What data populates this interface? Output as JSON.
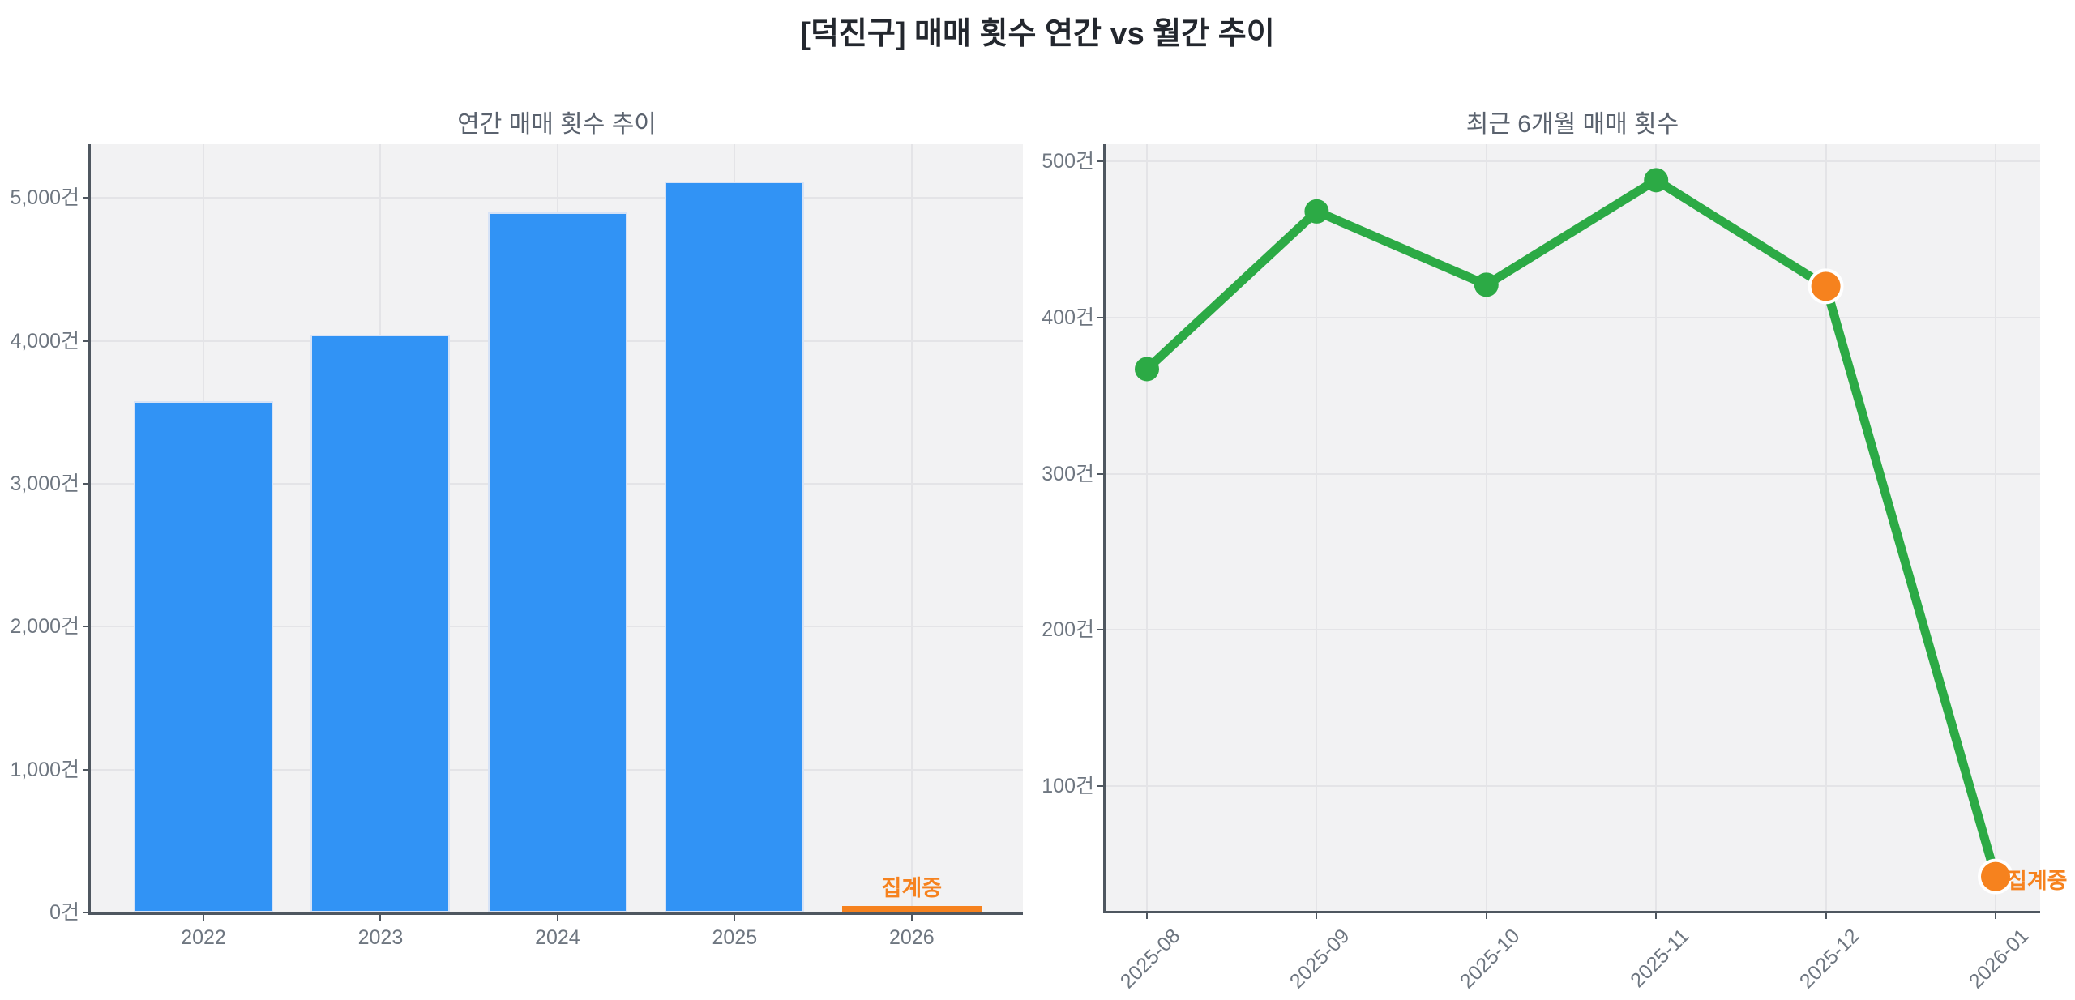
{
  "figure": {
    "title": "[덕진구] 매매 횟수 연간 vs 월간 추이"
  },
  "colors": {
    "bar_blue": "#3193f5",
    "bar_blue_edge": "#d7e3f6",
    "line_green": "#2caa45",
    "accent_orange": "#f6821e",
    "marker_edge_white": "#ffffff",
    "plot_background": "#f2f2f3",
    "gridline": "#e4e4e7",
    "axis_spine": "#4f5760",
    "tick_text": "#6e7680",
    "subtitle_text": "#5a626e",
    "title_text": "#23272e"
  },
  "chart_data": [
    {
      "id": "annual",
      "type": "bar",
      "title": "연간 매매 횟수 추이",
      "categories": [
        "2022",
        "2023",
        "2024",
        "2025",
        "2026"
      ],
      "values": [
        3580,
        4045,
        4900,
        5115,
        45
      ],
      "bar_colors": [
        "blue",
        "blue",
        "blue",
        "blue",
        "orange"
      ],
      "unit_suffix": "건",
      "y_ticks": [
        0,
        1000,
        2000,
        3000,
        4000,
        5000
      ],
      "ylim": [
        0,
        5376
      ],
      "grid": true,
      "annotations": [
        {
          "text": "집계중",
          "category": "2026",
          "placement": "above-bar"
        }
      ]
    },
    {
      "id": "monthly",
      "type": "line",
      "title": "최근 6개월 매매 횟수",
      "categories": [
        "2025-08",
        "2025-09",
        "2025-10",
        "2025-11",
        "2025-12",
        "2026-01"
      ],
      "values": [
        367,
        468,
        421,
        488,
        420,
        42
      ],
      "point_colors": [
        "green",
        "green",
        "green",
        "green",
        "orange",
        "orange"
      ],
      "unit_suffix": "건",
      "y_ticks": [
        100,
        200,
        300,
        400,
        500
      ],
      "ylim": [
        20,
        511
      ],
      "grid": true,
      "annotations": [
        {
          "text": "집계중",
          "category": "2026-01",
          "placement": "right-of-point"
        }
      ]
    }
  ]
}
